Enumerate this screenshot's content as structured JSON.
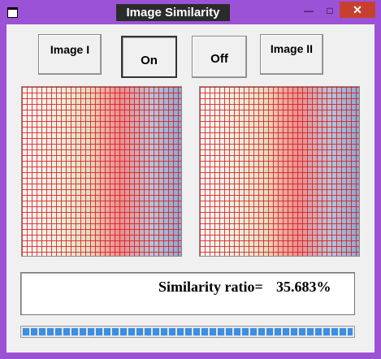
{
  "window": {
    "title": "Image Similarity"
  },
  "buttons": [
    "Image I",
    "On",
    "Off",
    "Image II"
  ],
  "result": {
    "label": "Similarity ratio=",
    "value": "35.683%"
  }
}
